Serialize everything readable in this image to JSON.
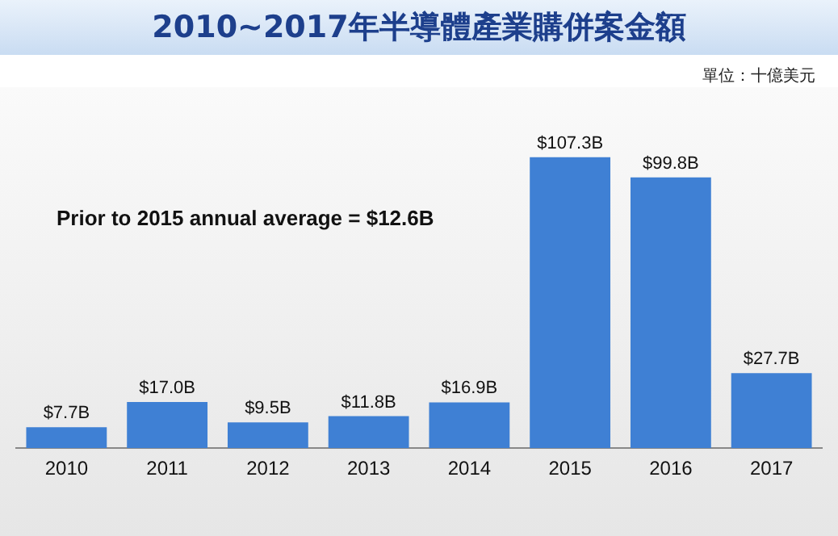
{
  "chart_data": {
    "type": "bar",
    "title": "2010~2017年半導體產業購併案金額",
    "categories": [
      "2010",
      "2011",
      "2012",
      "2013",
      "2014",
      "2015",
      "2016",
      "2017"
    ],
    "values": [
      7.7,
      17.0,
      9.5,
      11.8,
      16.9,
      107.3,
      99.8,
      27.7
    ],
    "value_labels": [
      "$7.7B",
      "$17.0B",
      "$9.5B",
      "$11.8B",
      "$16.9B",
      "$107.3B",
      "$99.8B",
      "$27.7B"
    ],
    "color": "#3f80d4",
    "annotations": [
      "Prior to 2015 annual average = $12.6B",
      "單位：十億美元"
    ],
    "grid": false,
    "legend": false
  }
}
